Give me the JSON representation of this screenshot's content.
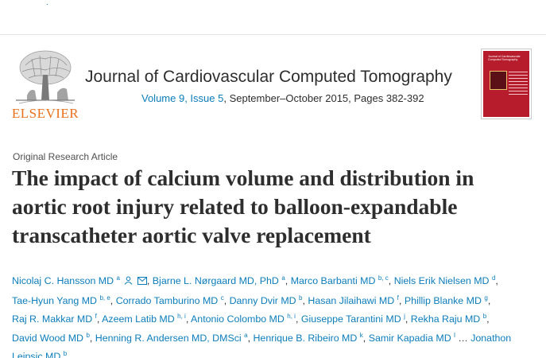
{
  "publisher": {
    "name": "ELSEVIER",
    "logo": "elsevier-tree-logo"
  },
  "journal": {
    "title": "Journal of Cardiovascular Computed Tomography",
    "volume_issue_link": "Volume 9, Issue 5",
    "details": ", September–October 2015, Pages 382-392",
    "cover": {
      "title": "Journal of Cardiovascular Computed Tomography",
      "accent_color": "#b71c2c"
    }
  },
  "article": {
    "type": "Original Research Article",
    "title_lines": [
      "The impact of calcium volume and distribution in",
      "aortic root injury related to balloon-expandable",
      "transcatheter aortic valve replacement"
    ]
  },
  "authors": {
    "lines": [
      [
        {
          "name": "Nicolaj C. Hansson MD",
          "sup": "a",
          "icons": [
            "person-icon",
            "email-icon"
          ]
        },
        {
          "name": "Bjarne L. Nørgaard MD, PhD",
          "sup": "a"
        },
        {
          "name": "Marco Barbanti MD",
          "sup": "b, c"
        },
        {
          "name": "Niels Erik Nielsen MD",
          "sup": "d"
        }
      ],
      [
        {
          "name": "Tae-Hyun Yang MD",
          "sup": "b, e"
        },
        {
          "name": "Corrado Tamburino MD",
          "sup": "c"
        },
        {
          "name": "Danny Dvir MD",
          "sup": "b"
        },
        {
          "name": "Hasan Jilaihawi MD",
          "sup": "f"
        },
        {
          "name": "Phillip Blanke MD",
          "sup": "g"
        }
      ],
      [
        {
          "name": "Raj R. Makkar MD",
          "sup": "f"
        },
        {
          "name": "Azeem Latib MD",
          "sup": "h, i"
        },
        {
          "name": "Antonio Colombo MD",
          "sup": "h, i"
        },
        {
          "name": "Giuseppe Tarantini MD",
          "sup": "j"
        },
        {
          "name": "Rekha Raju MD",
          "sup": "b"
        }
      ],
      [
        {
          "name": "David Wood MD",
          "sup": "b"
        },
        {
          "name": "Henning R. Andersen MD, DMSci",
          "sup": "a"
        },
        {
          "name": "Henrique B. Ribeiro MD",
          "sup": "k"
        },
        {
          "name": "Samir Kapadia MD",
          "sup": "l"
        },
        {
          "ellipsis": "…",
          "name": "Jonathon"
        }
      ],
      [
        {
          "name": "Leipsic MD",
          "sup": "b"
        }
      ]
    ]
  },
  "colors": {
    "link": "#0c7dbb",
    "publisher_orange": "#e9711c",
    "text": "#2e2e2e"
  }
}
